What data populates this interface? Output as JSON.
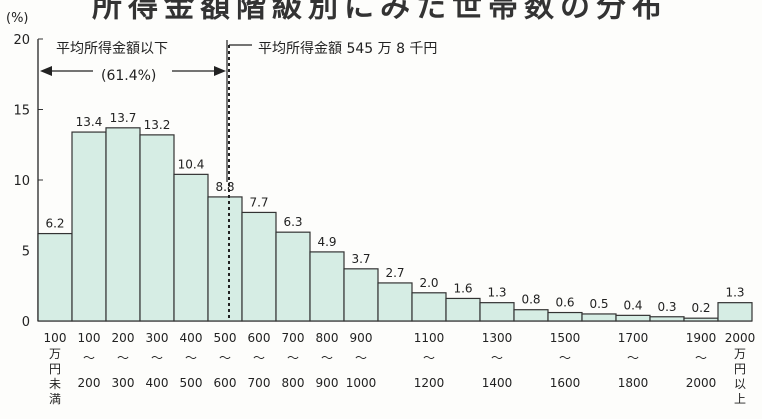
{
  "chart_data": {
    "type": "bar",
    "title": "所得金額階級別にみた世帯数の分布",
    "y_unit": "(%)",
    "ylim": [
      0,
      20
    ],
    "yticks": [
      "0",
      "5",
      "10",
      "15",
      "20"
    ],
    "grid": false,
    "bar_color": "#d6ede4",
    "categories": [
      {
        "top": "100",
        "bottom": "万円未満"
      },
      {
        "top": "100",
        "mid": "〜",
        "bottom": "200"
      },
      {
        "top": "200",
        "mid": "〜",
        "bottom": "300"
      },
      {
        "top": "300",
        "mid": "〜",
        "bottom": "400"
      },
      {
        "top": "400",
        "mid": "〜",
        "bottom": "500"
      },
      {
        "top": "500",
        "mid": "〜",
        "bottom": "600"
      },
      {
        "top": "600",
        "mid": "〜",
        "bottom": "700"
      },
      {
        "top": "700",
        "mid": "〜",
        "bottom": "800"
      },
      {
        "top": "800",
        "mid": "〜",
        "bottom": "900"
      },
      {
        "top": "900",
        "mid": "〜",
        "bottom": "1000"
      },
      {
        "top": "",
        "bottom": ""
      },
      {
        "top": "1100",
        "mid": "〜",
        "bottom": "1200"
      },
      {
        "top": "",
        "bottom": ""
      },
      {
        "top": "1300",
        "mid": "〜",
        "bottom": "1400"
      },
      {
        "top": "",
        "bottom": ""
      },
      {
        "top": "1500",
        "mid": "〜",
        "bottom": "1600"
      },
      {
        "top": "",
        "bottom": ""
      },
      {
        "top": "1700",
        "mid": "〜",
        "bottom": "1800"
      },
      {
        "top": "",
        "bottom": ""
      },
      {
        "top": "1900",
        "mid": "〜",
        "bottom": "2000"
      },
      {
        "top": "2000",
        "bottom": "万円以上"
      }
    ],
    "values": [
      6.2,
      13.4,
      13.7,
      13.2,
      10.4,
      8.8,
      7.7,
      6.3,
      4.9,
      3.7,
      2.7,
      2.0,
      1.6,
      1.3,
      0.8,
      0.6,
      0.5,
      0.4,
      0.3,
      0.2,
      1.3
    ],
    "value_labels": [
      "6.2",
      "13.4",
      "13.7",
      "13.2",
      "10.4",
      "8.8",
      "7.7",
      "6.3",
      "4.9",
      "3.7",
      "2.7",
      "2.0",
      "1.6",
      "1.3",
      "0.8",
      "0.6",
      "0.5",
      "0.4",
      "0.3",
      "0.2",
      "1.3"
    ],
    "annotations": {
      "below_average_label": "平均所得金額以下",
      "below_average_share": "(61.4%)",
      "average_label": "平均所得金額 545 万 8 千円",
      "average_value": 545.8
    }
  }
}
